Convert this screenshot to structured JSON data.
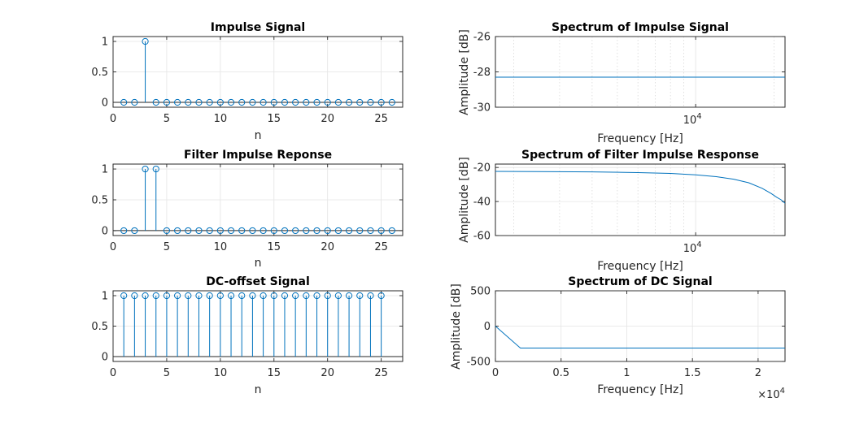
{
  "chart_data": [
    {
      "id": "impulse",
      "type": "stem",
      "title": "Impulse Signal",
      "xlabel": "n",
      "ylabel": "",
      "xlim": [
        0,
        27
      ],
      "ylim": [
        -0.08,
        1.08
      ],
      "xticks": [
        0,
        5,
        10,
        15,
        20,
        25
      ],
      "yticks": [
        0,
        0.5,
        1
      ],
      "xticklabels": [
        "0",
        "5",
        "10",
        "15",
        "20",
        "25"
      ],
      "yticklabels": [
        "0",
        "0.5",
        "1"
      ],
      "x": [
        1,
        2,
        3,
        4,
        5,
        6,
        7,
        8,
        9,
        10,
        11,
        12,
        13,
        14,
        15,
        16,
        17,
        18,
        19,
        20,
        21,
        22,
        23,
        24,
        25,
        26
      ],
      "values": [
        0,
        0,
        1,
        0,
        0,
        0,
        0,
        0,
        0,
        0,
        0,
        0,
        0,
        0,
        0,
        0,
        0,
        0,
        0,
        0,
        0,
        0,
        0,
        0,
        0,
        0
      ],
      "grid": true
    },
    {
      "id": "impulse_spectrum",
      "type": "line",
      "title": "Spectrum of Impulse Signal",
      "xlabel": "Frequency [Hz]",
      "ylabel": "Amplitude [dB]",
      "xscale": "log",
      "xlim": [
        1700,
        22050
      ],
      "ylim": [
        -30,
        -26
      ],
      "yticks": [
        -30,
        -28,
        -26
      ],
      "yticklabels": [
        "-30",
        "-28",
        "-26"
      ],
      "xticklabel": "10^4",
      "x": [
        1700,
        22050
      ],
      "values": [
        -28.3,
        -28.3
      ],
      "grid": true
    },
    {
      "id": "filter",
      "type": "stem",
      "title": "Filter Impulse Reponse",
      "xlabel": "n",
      "ylabel": "",
      "xlim": [
        0,
        27
      ],
      "ylim": [
        -0.08,
        1.08
      ],
      "xticks": [
        0,
        5,
        10,
        15,
        20,
        25
      ],
      "yticks": [
        0,
        0.5,
        1
      ],
      "xticklabels": [
        "0",
        "5",
        "10",
        "15",
        "20",
        "25"
      ],
      "yticklabels": [
        "0",
        "0.5",
        "1"
      ],
      "x": [
        1,
        2,
        3,
        4,
        5,
        6,
        7,
        8,
        9,
        10,
        11,
        12,
        13,
        14,
        15,
        16,
        17,
        18,
        19,
        20,
        21,
        22,
        23,
        24,
        25,
        26
      ],
      "values": [
        0,
        0,
        1,
        1,
        0,
        0,
        0,
        0,
        0,
        0,
        0,
        0,
        0,
        0,
        0,
        0,
        0,
        0,
        0,
        0,
        0,
        0,
        0,
        0,
        0,
        0
      ],
      "grid": true
    },
    {
      "id": "filter_spectrum",
      "type": "line",
      "title": "Spectrum of Filter Impulse Response",
      "xlabel": "Frequency [Hz]",
      "ylabel": "Amplitude [dB]",
      "xscale": "log",
      "xlim": [
        1700,
        22050
      ],
      "ylim": [
        -60,
        -18
      ],
      "yticks": [
        -60,
        -40,
        -20
      ],
      "yticklabels": [
        "-60",
        "-40",
        "-20"
      ],
      "xticklabel": "10^4",
      "x": [
        1700,
        2500,
        4000,
        6000,
        8000,
        10000,
        12000,
        14000,
        16000,
        18000,
        19500,
        20500,
        21300,
        22050
      ],
      "values": [
        -22.3,
        -22.4,
        -22.6,
        -23.0,
        -23.5,
        -24.3,
        -25.4,
        -26.9,
        -29.0,
        -32.2,
        -35.3,
        -37.5,
        -39.0,
        -41.0
      ],
      "grid": true
    },
    {
      "id": "dc",
      "type": "stem",
      "title": "DC-offset Signal",
      "xlabel": "n",
      "ylabel": "",
      "xlim": [
        0,
        27
      ],
      "ylim": [
        -0.08,
        1.08
      ],
      "xticks": [
        0,
        5,
        10,
        15,
        20,
        25
      ],
      "yticks": [
        0,
        0.5,
        1
      ],
      "xticklabels": [
        "0",
        "5",
        "10",
        "15",
        "20",
        "25"
      ],
      "yticklabels": [
        "0",
        "0.5",
        "1"
      ],
      "x": [
        1,
        2,
        3,
        4,
        5,
        6,
        7,
        8,
        9,
        10,
        11,
        12,
        13,
        14,
        15,
        16,
        17,
        18,
        19,
        20,
        21,
        22,
        23,
        24,
        25
      ],
      "values": [
        1,
        1,
        1,
        1,
        1,
        1,
        1,
        1,
        1,
        1,
        1,
        1,
        1,
        1,
        1,
        1,
        1,
        1,
        1,
        1,
        1,
        1,
        1,
        1,
        1
      ],
      "grid": true
    },
    {
      "id": "dc_spectrum",
      "type": "line",
      "title": "Spectrum of DC Signal",
      "xlabel": "Frequency [Hz]",
      "ylabel": "Amplitude [dB]",
      "xscale": "linear",
      "xlim": [
        0,
        22050
      ],
      "ylim": [
        -500,
        500
      ],
      "xticks": [
        0,
        5000,
        10000,
        15000,
        20000
      ],
      "xticklabels": [
        "0",
        "0.5",
        "1",
        "1.5",
        "2"
      ],
      "yticks": [
        -500,
        0,
        500
      ],
      "yticklabels": [
        "-500",
        "0",
        "500"
      ],
      "xexponent": "×10^4",
      "x": [
        0,
        1900,
        22050
      ],
      "values": [
        0,
        -310,
        -310
      ],
      "grid": true
    }
  ]
}
